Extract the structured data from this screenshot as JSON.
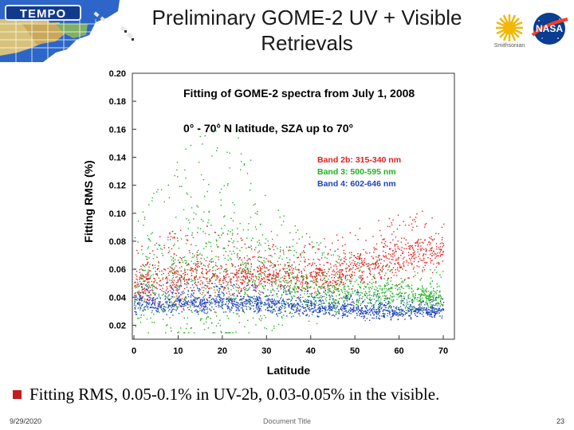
{
  "header": {
    "brand": "TEMPO",
    "title_line1": "Preliminary GOME-2 UV + Visible",
    "title_line2": "Retrievals",
    "smithsonian_caption": "Smithsonian",
    "nasa_label": "NASA",
    "icons": [
      "tempo-logo",
      "us-map-graphic",
      "smithsonian-sun-logo",
      "nasa-meatball-logo"
    ]
  },
  "chart_data": {
    "type": "scatter",
    "title": "Fitting of GOME-2 spectra from July 1, 2008",
    "subtitle": "0° - 70° N latitude, SZA up to 70°",
    "xlabel": "Latitude",
    "ylabel": "Fitting RMS (%)",
    "xlim": [
      0,
      70
    ],
    "ylim": [
      0.01,
      0.2
    ],
    "x_ticks": [
      0,
      10,
      20,
      30,
      40,
      50,
      60,
      70
    ],
    "y_ticks": [
      0.02,
      0.04,
      0.06,
      0.08,
      0.1,
      0.12,
      0.14,
      0.16,
      0.18,
      0.2
    ],
    "y_tick_labels": [
      "0.02",
      "0.04",
      "0.06",
      "0.08",
      "0.10",
      "0.12",
      "0.14",
      "0.16",
      "0.18",
      "0.20"
    ],
    "grid": false,
    "legend_position": "upper-right",
    "series": [
      {
        "name": "Band 2b: 315-340 nm",
        "color": "#e02020",
        "latitude": [
          0,
          5,
          10,
          15,
          20,
          25,
          30,
          35,
          40,
          45,
          50,
          55,
          60,
          65,
          70
        ],
        "rms_typical": [
          0.048,
          0.05,
          0.052,
          0.054,
          0.055,
          0.056,
          0.056,
          0.055,
          0.054,
          0.056,
          0.06,
          0.064,
          0.068,
          0.072,
          0.075
        ],
        "rms_upper": [
          0.075,
          0.085,
          0.09,
          0.095,
          0.09,
          0.085,
          0.08,
          0.078,
          0.08,
          0.085,
          0.09,
          0.095,
          0.1,
          0.103,
          0.105
        ]
      },
      {
        "name": "Band 3: 500-595 nm",
        "color": "#22b022",
        "latitude": [
          0,
          5,
          10,
          15,
          20,
          25,
          30,
          35,
          40,
          45,
          50,
          55,
          60,
          65,
          70
        ],
        "rms_typical": [
          0.042,
          0.045,
          0.05,
          0.055,
          0.055,
          0.052,
          0.048,
          0.046,
          0.045,
          0.043,
          0.042,
          0.041,
          0.04,
          0.04,
          0.04
        ],
        "rms_upper": [
          0.09,
          0.12,
          0.14,
          0.16,
          0.17,
          0.15,
          0.12,
          0.1,
          0.085,
          0.075,
          0.07,
          0.068,
          0.065,
          0.062,
          0.06
        ]
      },
      {
        "name": "Band 4: 602-646 nm",
        "color": "#2040c0",
        "latitude": [
          0,
          5,
          10,
          15,
          20,
          25,
          30,
          35,
          40,
          45,
          50,
          55,
          60,
          65,
          70
        ],
        "rms_typical": [
          0.035,
          0.035,
          0.036,
          0.036,
          0.037,
          0.036,
          0.035,
          0.034,
          0.033,
          0.032,
          0.031,
          0.03,
          0.03,
          0.03,
          0.03
        ],
        "rms_upper": [
          0.05,
          0.05,
          0.052,
          0.052,
          0.05,
          0.05,
          0.05,
          0.048,
          0.046,
          0.045,
          0.044,
          0.043,
          0.042,
          0.041,
          0.04
        ]
      }
    ]
  },
  "bullet": {
    "text": "Fitting RMS, 0.05-0.1% in UV-2b, 0.03-0.05% in the visible."
  },
  "footer": {
    "date": "9/29/2020",
    "doc_title": "Document Title",
    "page": "23"
  }
}
